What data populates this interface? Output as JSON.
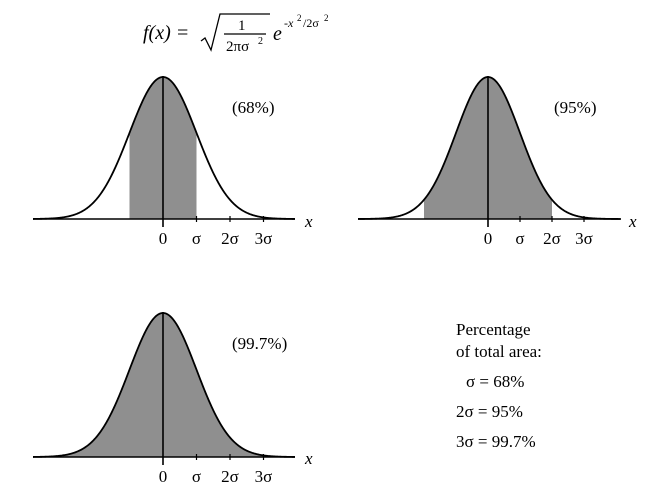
{
  "formula": {
    "lhs": "f(x) =",
    "numerator": "1",
    "denominator": "2πσ",
    "denominator_exp": "2",
    "base": "e",
    "exponent": "-x",
    "exponent_sq": "2",
    "exponent_tail": "/2σ",
    "exponent_tail_sq": "2"
  },
  "chart_data": [
    {
      "type": "area",
      "title": "(68%)",
      "xlabel": "x",
      "tick_labels": [
        "0",
        "σ",
        "2σ",
        "3σ"
      ],
      "tick_values": [
        0,
        1,
        2,
        3
      ],
      "shaded_range": [
        -1,
        1
      ],
      "xlim": [
        -4,
        4
      ]
    },
    {
      "type": "area",
      "title": "(95%)",
      "xlabel": "x",
      "tick_labels": [
        "0",
        "σ",
        "2σ",
        "3σ"
      ],
      "tick_values": [
        0,
        1,
        2,
        3
      ],
      "shaded_range": [
        -2,
        2
      ],
      "xlim": [
        -4,
        4
      ]
    },
    {
      "type": "area",
      "title": "(99.7%)",
      "xlabel": "x",
      "tick_labels": [
        "0",
        "σ",
        "2σ",
        "3σ"
      ],
      "tick_values": [
        0,
        1,
        2,
        3
      ],
      "shaded_range": [
        -3,
        3
      ],
      "xlim": [
        -4,
        4
      ]
    }
  ],
  "legend": {
    "heading_line1": "Percentage",
    "heading_line2": "of total area:",
    "rows": [
      "σ = 68%",
      "2σ = 95%",
      "3σ = 99.7%"
    ]
  },
  "colors": {
    "fill": "#8f8f8f",
    "stroke": "#000000"
  }
}
